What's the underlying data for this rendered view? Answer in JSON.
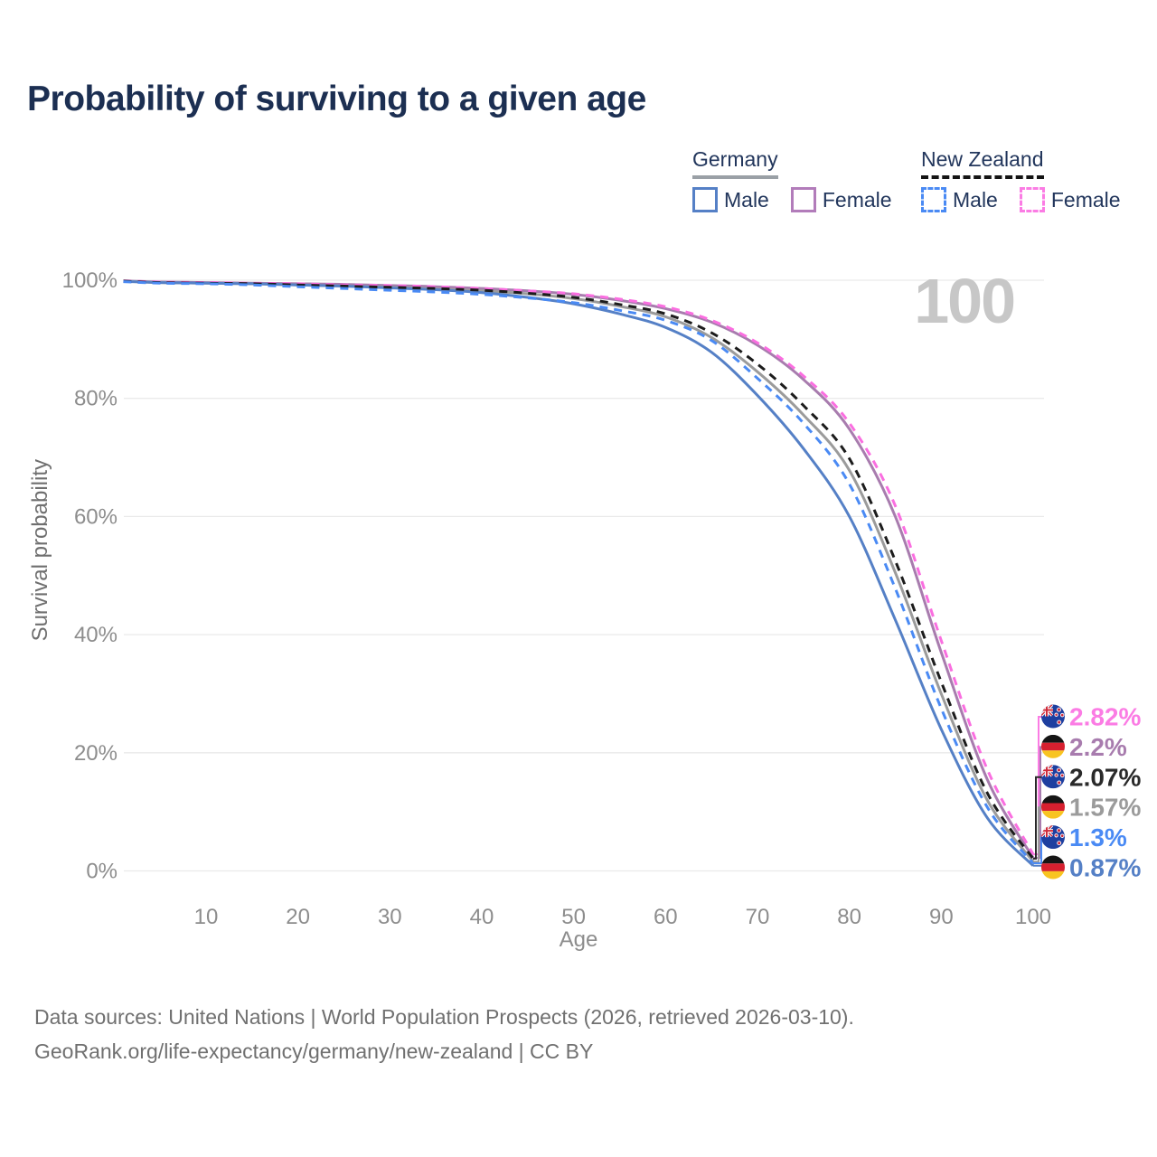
{
  "title": "Probability of surviving to a given age",
  "legend": {
    "groups": [
      {
        "name": "Germany",
        "line_style": "solid",
        "underline_color": "#9aa0a6",
        "items": [
          {
            "label": "Male",
            "color": "#5580c6",
            "dashed": false
          },
          {
            "label": "Female",
            "color": "#b27cba",
            "dashed": false
          }
        ]
      },
      {
        "name": "New Zealand",
        "line_style": "dashed",
        "underline_color": "#141414",
        "items": [
          {
            "label": "Male",
            "color": "#4a8af4",
            "dashed": true
          },
          {
            "label": "Female",
            "color": "#fb7ce4",
            "dashed": true
          }
        ]
      }
    ]
  },
  "chart_data": {
    "type": "line",
    "title": "Probability of surviving to a given age",
    "xlabel": "Age",
    "ylabel": "Survival probability",
    "xlim": [
      1,
      100
    ],
    "ylim": [
      0,
      100
    ],
    "grid": "horizontal",
    "legend_position": "top-right",
    "watermark": "100",
    "x_ticks": [
      10,
      20,
      30,
      40,
      50,
      60,
      70,
      80,
      90,
      100
    ],
    "y_ticks": [
      "0%",
      "20%",
      "40%",
      "60%",
      "80%",
      "100%"
    ],
    "ages": [
      1,
      5,
      10,
      15,
      20,
      25,
      30,
      35,
      40,
      45,
      50,
      55,
      60,
      65,
      70,
      75,
      80,
      85,
      90,
      95,
      100
    ],
    "series": [
      {
        "name": "Germany Female",
        "country": "Germany",
        "sex": "Female",
        "color": "#a87cae",
        "dashed": false,
        "values": [
          99.9,
          99.7,
          99.6,
          99.5,
          99.4,
          99.3,
          99.1,
          98.9,
          98.6,
          98.2,
          97.6,
          96.6,
          95.2,
          92.9,
          89.0,
          83.2,
          74.8,
          60.0,
          37.0,
          15.5,
          2.2
        ]
      },
      {
        "name": "Germany Total",
        "country": "Germany",
        "sex": "Both",
        "color": "#9b9b9b",
        "dashed": false,
        "values": [
          99.85,
          99.6,
          99.5,
          99.4,
          99.2,
          99.0,
          98.8,
          98.5,
          98.2,
          97.7,
          96.9,
          95.6,
          93.8,
          90.3,
          84.5,
          77.2,
          67.8,
          50.5,
          30.0,
          12.0,
          1.57
        ]
      },
      {
        "name": "Germany Male",
        "country": "Germany",
        "sex": "Male",
        "color": "#5580c6",
        "dashed": false,
        "values": [
          99.8,
          99.6,
          99.5,
          99.4,
          99.2,
          99.0,
          98.7,
          98.4,
          97.9,
          97.1,
          96.0,
          94.3,
          92.0,
          87.8,
          80.5,
          71.5,
          60.0,
          42.5,
          24.0,
          9.0,
          0.87
        ]
      },
      {
        "name": "New Zealand Female",
        "country": "New Zealand",
        "sex": "Female",
        "color": "#fa6ee0",
        "dashed": true,
        "values": [
          99.9,
          99.7,
          99.6,
          99.5,
          99.4,
          99.2,
          99.1,
          98.9,
          98.6,
          98.2,
          97.7,
          96.8,
          95.5,
          93.2,
          89.4,
          83.8,
          75.8,
          61.8,
          39.0,
          17.2,
          2.82
        ]
      },
      {
        "name": "New Zealand Total",
        "country": "New Zealand",
        "sex": "Both",
        "color": "#1c1c1c",
        "dashed": true,
        "values": [
          99.85,
          99.6,
          99.5,
          99.4,
          99.2,
          99.0,
          98.8,
          98.6,
          98.3,
          97.8,
          97.1,
          95.9,
          94.3,
          91.1,
          85.8,
          78.8,
          69.8,
          52.5,
          32.0,
          13.2,
          2.07
        ]
      },
      {
        "name": "New Zealand Male",
        "country": "New Zealand",
        "sex": "Male",
        "color": "#4a8af4",
        "dashed": true,
        "values": [
          99.75,
          99.5,
          99.4,
          99.2,
          98.9,
          98.6,
          98.3,
          98.0,
          97.6,
          97.0,
          96.2,
          94.9,
          93.2,
          89.8,
          83.4,
          75.8,
          65.5,
          47.8,
          27.5,
          10.8,
          1.3
        ]
      }
    ],
    "end_labels": [
      {
        "series": "New Zealand Female",
        "flag": "nz",
        "text": "2.82%",
        "color": "#fb7ce4",
        "value": 2.82
      },
      {
        "series": "Germany Female",
        "flag": "de",
        "text": "2.2%",
        "color": "#a87cae",
        "value": 2.2
      },
      {
        "series": "New Zealand Total",
        "flag": "nz",
        "text": "2.07%",
        "color": "#2a2a2a",
        "value": 2.07
      },
      {
        "series": "Germany Total",
        "flag": "de",
        "text": "1.57%",
        "color": "#9b9b9b",
        "value": 1.57
      },
      {
        "series": "New Zealand Male",
        "flag": "nz",
        "text": "1.3%",
        "color": "#4a8af4",
        "value": 1.3
      },
      {
        "series": "Germany Male",
        "flag": "de",
        "text": "0.87%",
        "color": "#5580c6",
        "value": 0.87
      }
    ]
  },
  "footer": {
    "line1": "Data sources: United Nations | World Population Prospects (2026, retrieved 2026-03-10).",
    "line2": "GeoRank.org/life-expectancy/germany/new-zealand | CC BY"
  }
}
